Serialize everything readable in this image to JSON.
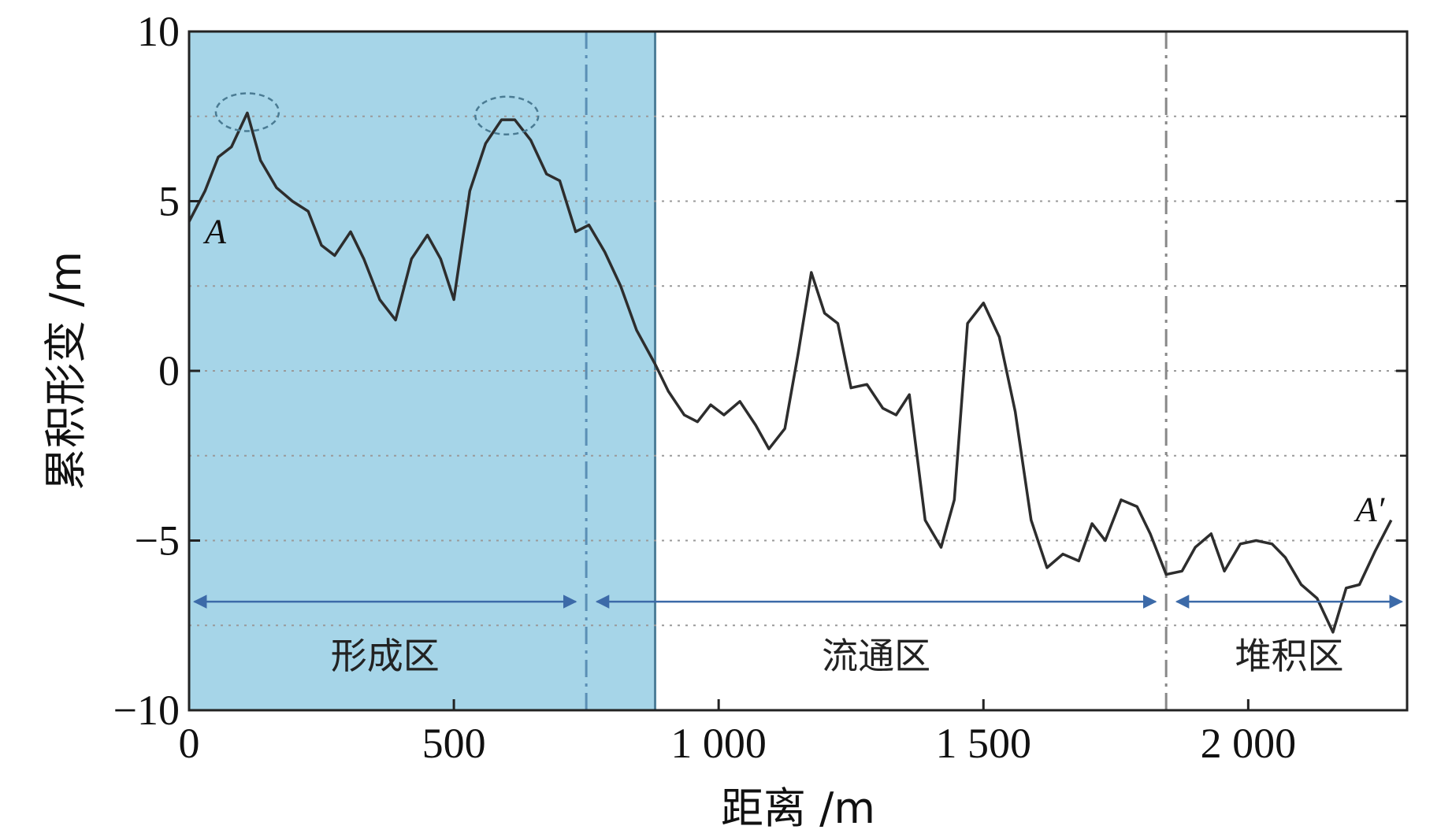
{
  "chart_data": {
    "type": "line",
    "xlabel": "距离 /m",
    "ylabel": "累积形变 /m",
    "xlim": [
      0,
      2300
    ],
    "ylim": [
      -10,
      10
    ],
    "xticks": [
      0,
      500,
      1000,
      1500,
      2000
    ],
    "xtick_labels": [
      "0",
      "500",
      "1 000",
      "1 500",
      "2 000"
    ],
    "yticks": [
      -10,
      -5,
      0,
      5,
      10
    ],
    "ytick_labels": [
      "−10",
      "−5",
      "0",
      "5",
      "10"
    ],
    "grid": "horizontal dotted at every 2.5 units",
    "shaded_region": {
      "x": [
        0,
        880
      ],
      "color": "#a6d5e8"
    },
    "vertical_lines": [
      {
        "x": 750,
        "style": "dash-dot",
        "color": "#5a8fb5"
      },
      {
        "x": 1845,
        "style": "dash-dot",
        "color": "#888888"
      }
    ],
    "zones": [
      {
        "label": "形成区",
        "x": [
          10,
          730
        ]
      },
      {
        "label": "流通区",
        "x": [
          770,
          1825
        ]
      },
      {
        "label": "堆积区",
        "x": [
          1865,
          2290
        ]
      }
    ],
    "zone_arrow_y": -6.8,
    "zone_label_y": -8.4,
    "point_labels": [
      {
        "label": "A",
        "x": 50,
        "y": 4.1
      },
      {
        "label": "A′",
        "x": 2230,
        "y": -4.1
      }
    ],
    "highlight_ellipses": [
      {
        "x": 110,
        "y": 7.6
      },
      {
        "x": 600,
        "y": 7.5
      }
    ],
    "series": [
      {
        "color": "#2d2d2d",
        "points": [
          [
            0,
            4.4
          ],
          [
            30,
            5.3
          ],
          [
            55,
            6.3
          ],
          [
            80,
            6.6
          ],
          [
            110,
            7.6
          ],
          [
            135,
            6.2
          ],
          [
            165,
            5.4
          ],
          [
            195,
            5.0
          ],
          [
            225,
            4.7
          ],
          [
            250,
            3.7
          ],
          [
            275,
            3.4
          ],
          [
            305,
            4.1
          ],
          [
            330,
            3.3
          ],
          [
            360,
            2.1
          ],
          [
            390,
            1.5
          ],
          [
            420,
            3.3
          ],
          [
            450,
            4.0
          ],
          [
            475,
            3.3
          ],
          [
            500,
            2.1
          ],
          [
            530,
            5.3
          ],
          [
            560,
            6.7
          ],
          [
            590,
            7.4
          ],
          [
            615,
            7.4
          ],
          [
            645,
            6.8
          ],
          [
            675,
            5.8
          ],
          [
            700,
            5.6
          ],
          [
            730,
            4.1
          ],
          [
            755,
            4.3
          ],
          [
            785,
            3.5
          ],
          [
            815,
            2.5
          ],
          [
            845,
            1.2
          ],
          [
            880,
            0.2
          ],
          [
            905,
            -0.6
          ],
          [
            935,
            -1.3
          ],
          [
            960,
            -1.5
          ],
          [
            985,
            -1.0
          ],
          [
            1010,
            -1.3
          ],
          [
            1040,
            -0.9
          ],
          [
            1070,
            -1.6
          ],
          [
            1095,
            -2.3
          ],
          [
            1125,
            -1.7
          ],
          [
            1150,
            0.5
          ],
          [
            1175,
            2.9
          ],
          [
            1200,
            1.7
          ],
          [
            1225,
            1.4
          ],
          [
            1250,
            -0.5
          ],
          [
            1280,
            -0.4
          ],
          [
            1310,
            -1.1
          ],
          [
            1335,
            -1.3
          ],
          [
            1360,
            -0.7
          ],
          [
            1390,
            -4.4
          ],
          [
            1420,
            -5.2
          ],
          [
            1445,
            -3.8
          ],
          [
            1470,
            1.4
          ],
          [
            1500,
            2.0
          ],
          [
            1530,
            1.0
          ],
          [
            1560,
            -1.2
          ],
          [
            1590,
            -4.4
          ],
          [
            1620,
            -5.8
          ],
          [
            1650,
            -5.4
          ],
          [
            1680,
            -5.6
          ],
          [
            1705,
            -4.5
          ],
          [
            1730,
            -5.0
          ],
          [
            1760,
            -3.8
          ],
          [
            1790,
            -4.0
          ],
          [
            1815,
            -4.8
          ],
          [
            1845,
            -6.0
          ],
          [
            1875,
            -5.9
          ],
          [
            1900,
            -5.2
          ],
          [
            1930,
            -4.8
          ],
          [
            1955,
            -5.9
          ],
          [
            1985,
            -5.1
          ],
          [
            2015,
            -5.0
          ],
          [
            2045,
            -5.1
          ],
          [
            2070,
            -5.5
          ],
          [
            2100,
            -6.3
          ],
          [
            2130,
            -6.7
          ],
          [
            2160,
            -7.7
          ],
          [
            2185,
            -6.4
          ],
          [
            2210,
            -6.3
          ],
          [
            2240,
            -5.3
          ],
          [
            2270,
            -4.4
          ]
        ]
      }
    ]
  }
}
